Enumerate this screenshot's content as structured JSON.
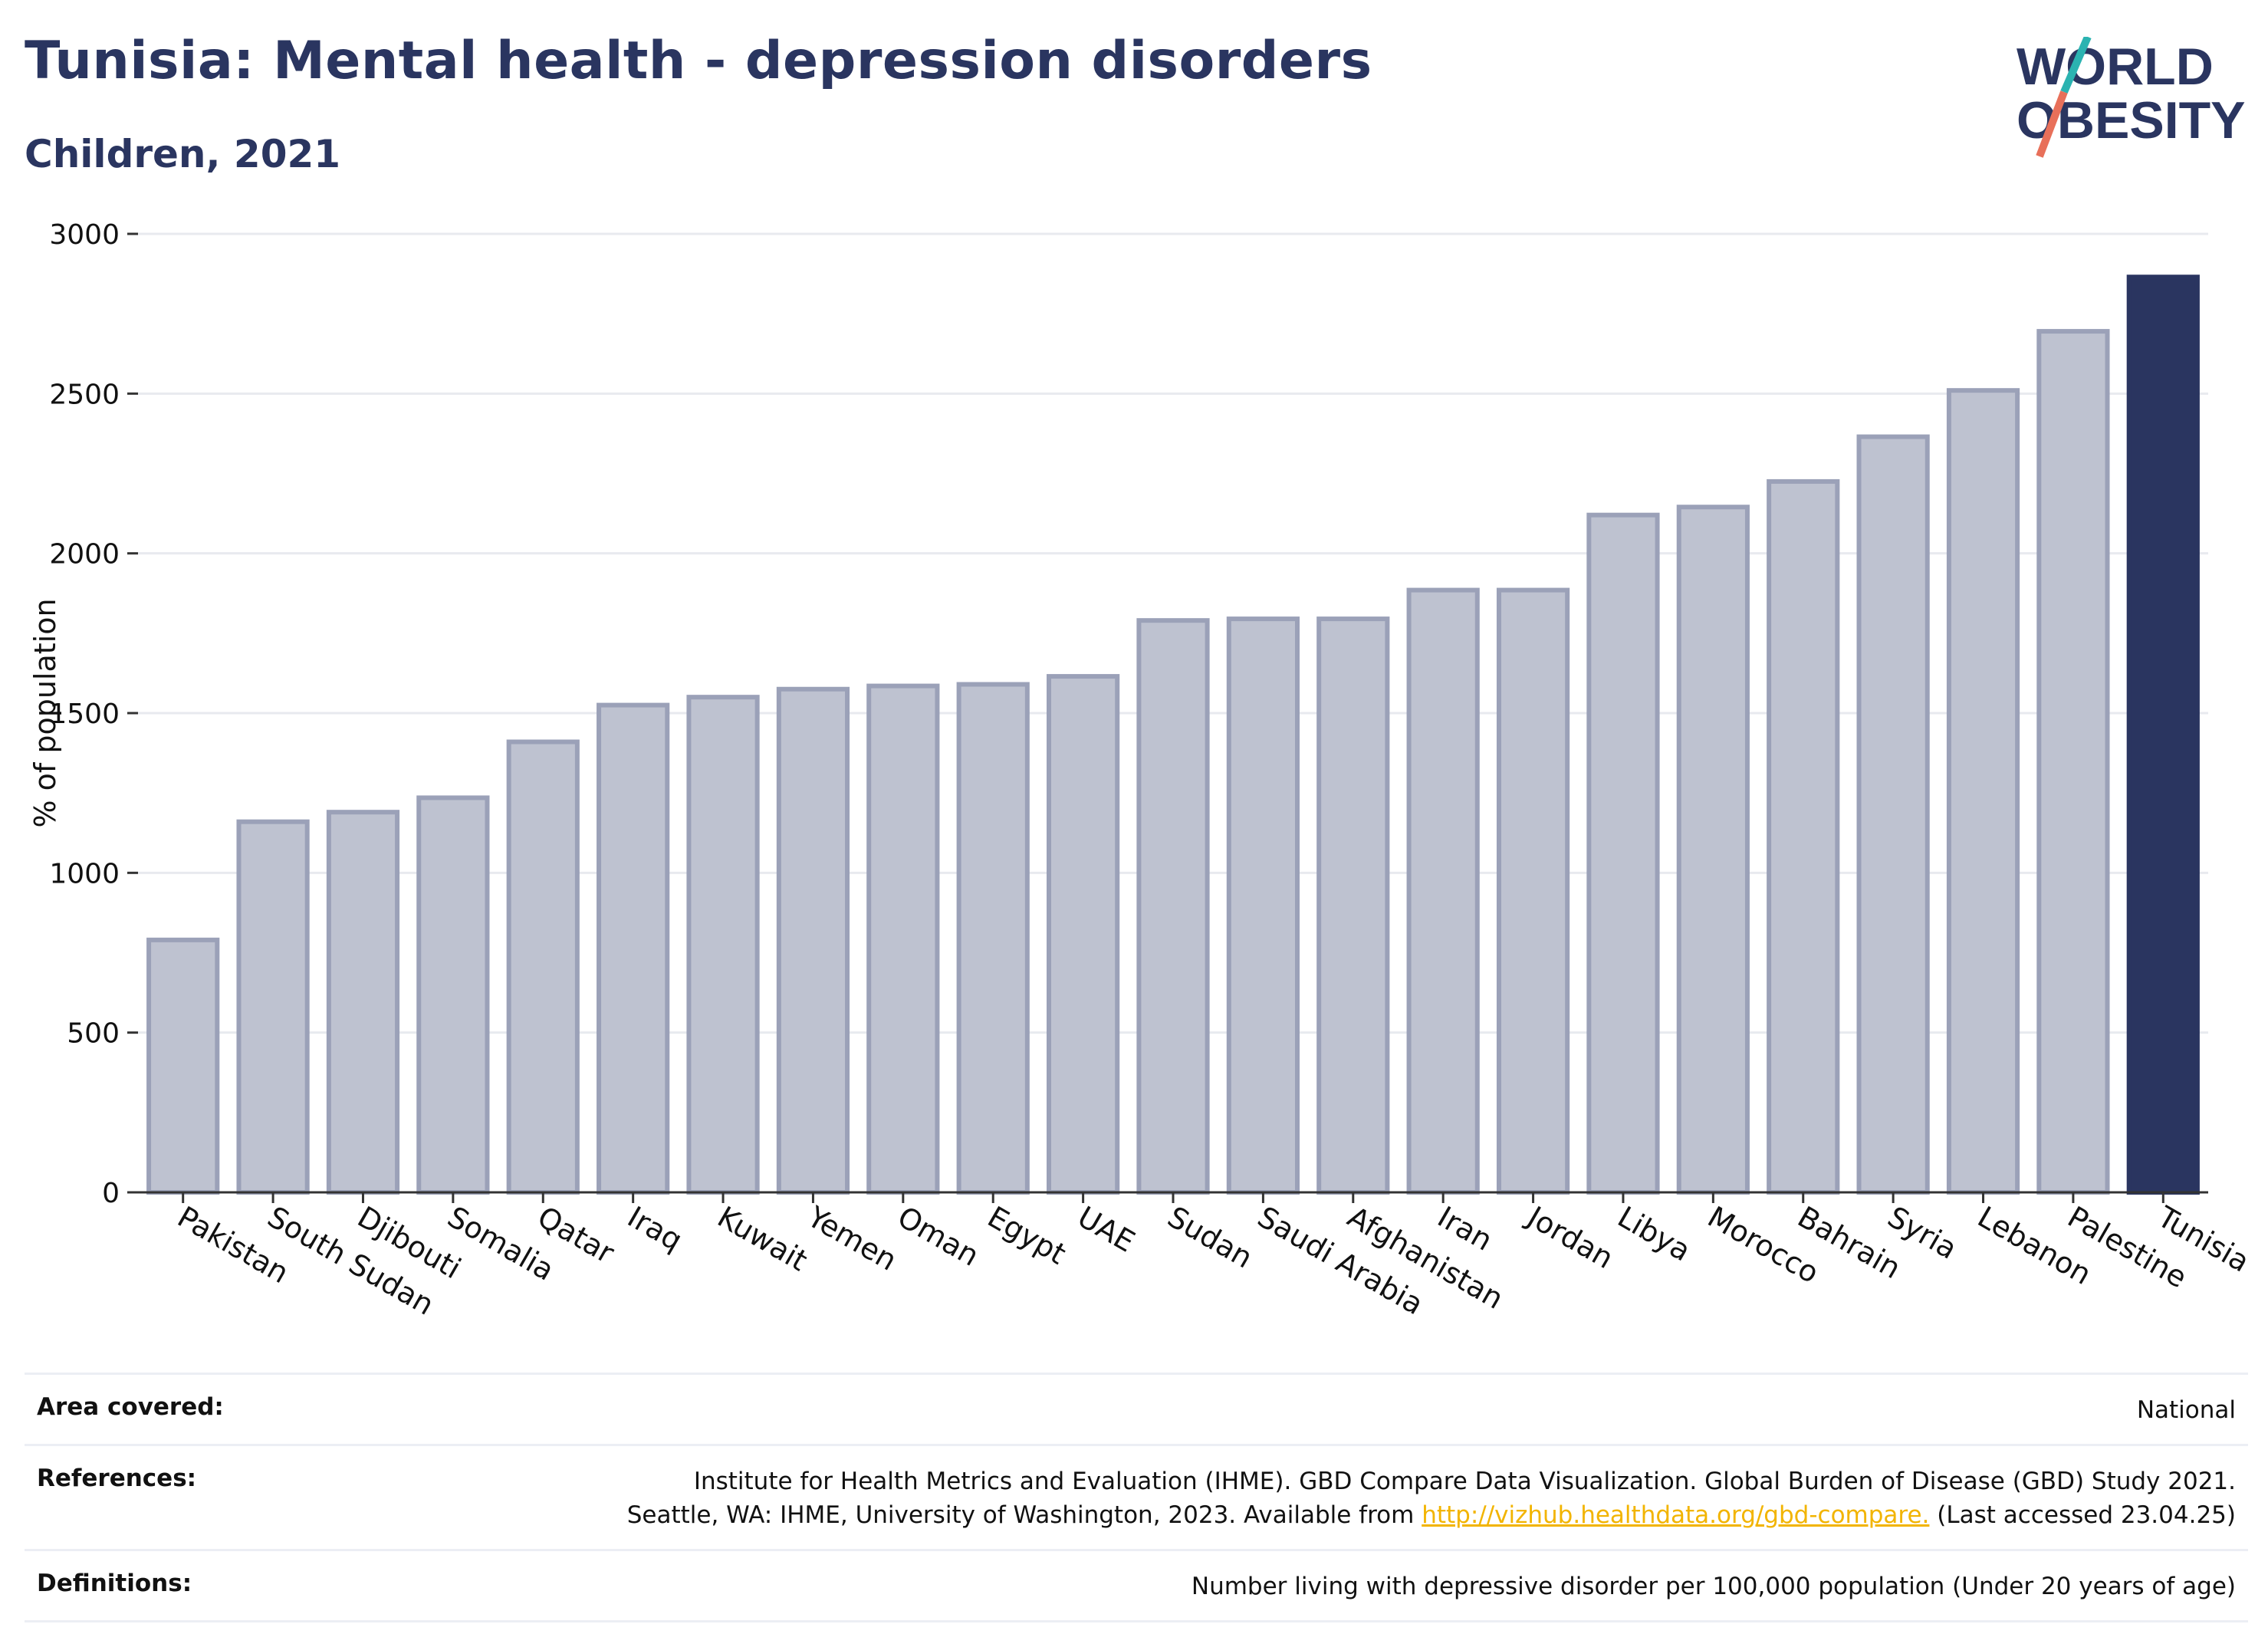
{
  "header": {
    "title": "Tunisia: Mental health - depression disorders",
    "subtitle": "Children, 2021"
  },
  "logo": {
    "line1": "WORLD",
    "line2": "OBESITY",
    "accent_teal": "#2bb3b1",
    "accent_coral": "#e8705a"
  },
  "chart_data": {
    "type": "bar",
    "categories": [
      "Pakistan",
      "South Sudan",
      "Djibouti",
      "Somalia",
      "Qatar",
      "Iraq",
      "Kuwait",
      "Yemen",
      "Oman",
      "Egypt",
      "UAE",
      "Sudan",
      "Saudi Arabia",
      "Afghanistan",
      "Iran",
      "Jordan",
      "Libya",
      "Morocco",
      "Bahrain",
      "Syria",
      "Lebanon",
      "Palestine",
      "Tunisia"
    ],
    "values": [
      790,
      1160,
      1190,
      1235,
      1410,
      1525,
      1550,
      1575,
      1585,
      1590,
      1615,
      1790,
      1795,
      1795,
      1885,
      1885,
      2120,
      2145,
      2225,
      2365,
      2510,
      2695,
      2865
    ],
    "highlight": "Tunisia",
    "title": "Tunisia: Mental health - depression disorders",
    "ylabel": "% of population",
    "xlabel": "",
    "ylim": [
      0,
      3000
    ],
    "yticks": [
      0,
      500,
      1000,
      1500,
      2000,
      2500,
      3000
    ],
    "grid": true,
    "colors": {
      "bar": "#bec2d0",
      "bar_border": "#9ba1b8",
      "highlight": "#2a3560",
      "grid": "#e8eaef"
    }
  },
  "footer": {
    "area_label": "Area covered:",
    "area_value": "National",
    "ref_label": "References:",
    "ref_line1": "Institute for Health Metrics and Evaluation (IHME). GBD Compare Data Visualization. Global Burden of Disease (GBD) Study 2021.",
    "ref_line2_pre": "Seattle, WA: IHME, University of Washington, 2023. Available from",
    "ref_link": "http://vizhub.healthdata.org/gbd-compare.",
    "ref_line2_post": "(Last accessed 23.04.25)",
    "def_label": "Definitions:",
    "def_value": "Number living with depressive disorder per 100,000 population (Under 20 years of age)"
  }
}
